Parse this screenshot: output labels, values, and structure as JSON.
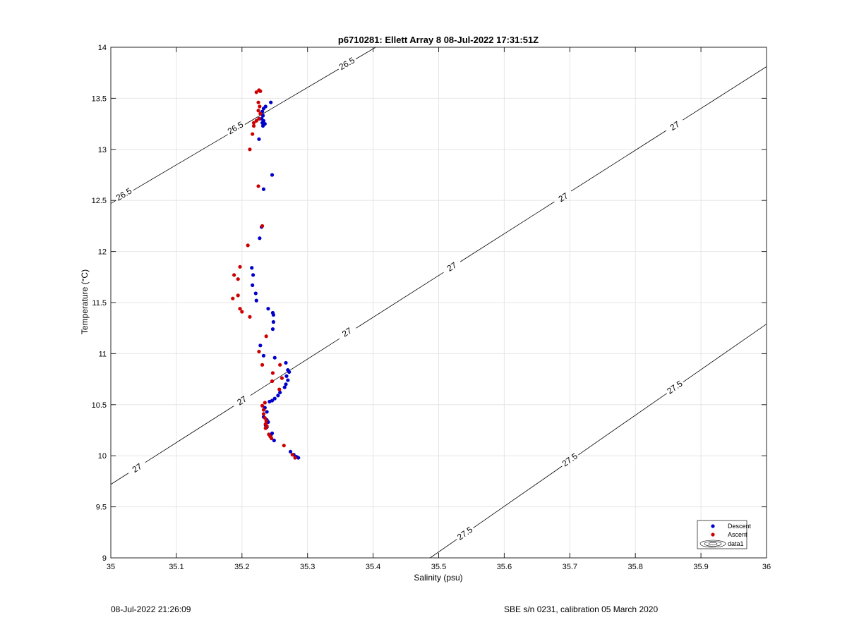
{
  "chart_data": {
    "type": "scatter",
    "title": "p6710281: Ellett Array 8 08-Jul-2022 17:31:51Z",
    "xlabel": "Salinity (psu)",
    "ylabel": "Temperature (°C)",
    "xlim": [
      35,
      36
    ],
    "ylim": [
      9,
      14
    ],
    "xticks": [
      35,
      35.1,
      35.2,
      35.3,
      35.4,
      35.5,
      35.6,
      35.7,
      35.8,
      35.9,
      36
    ],
    "xtick_labels": [
      "35",
      "35.1",
      "35.2",
      "35.3",
      "35.4",
      "35.5",
      "35.6",
      "35.7",
      "35.8",
      "35.9",
      "36"
    ],
    "yticks": [
      9,
      9.5,
      10,
      10.5,
      11,
      11.5,
      12,
      12.5,
      13,
      13.5,
      14
    ],
    "ytick_labels": [
      "9",
      "9.5",
      "10",
      "10.5",
      "11",
      "11.5",
      "12",
      "12.5",
      "13",
      "13.5",
      "14"
    ],
    "grid": true,
    "legend_position": "bottom-right",
    "series": [
      {
        "name": "Descent",
        "color": "#0000cc",
        "points": [
          [
            35.244,
            13.46
          ],
          [
            35.236,
            13.42
          ],
          [
            35.233,
            13.4
          ],
          [
            35.231,
            13.37
          ],
          [
            35.232,
            13.33
          ],
          [
            35.23,
            13.3
          ],
          [
            35.233,
            13.28
          ],
          [
            35.231,
            13.26
          ],
          [
            35.235,
            13.25
          ],
          [
            35.232,
            13.23
          ],
          [
            35.226,
            13.1
          ],
          [
            35.246,
            12.75
          ],
          [
            35.233,
            12.61
          ],
          [
            35.23,
            12.24
          ],
          [
            35.227,
            12.13
          ],
          [
            35.215,
            11.84
          ],
          [
            35.217,
            11.77
          ],
          [
            35.216,
            11.67
          ],
          [
            35.221,
            11.59
          ],
          [
            35.222,
            11.52
          ],
          [
            35.24,
            11.44
          ],
          [
            35.247,
            11.4
          ],
          [
            35.248,
            11.38
          ],
          [
            35.248,
            11.31
          ],
          [
            35.247,
            11.24
          ],
          [
            35.228,
            11.08
          ],
          [
            35.233,
            10.98
          ],
          [
            35.25,
            10.96
          ],
          [
            35.267,
            10.91
          ],
          [
            35.27,
            10.84
          ],
          [
            35.272,
            10.82
          ],
          [
            35.268,
            10.78
          ],
          [
            35.27,
            10.74
          ],
          [
            35.267,
            10.7
          ],
          [
            35.265,
            10.67
          ],
          [
            35.258,
            10.62
          ],
          [
            35.255,
            10.59
          ],
          [
            35.25,
            10.56
          ],
          [
            35.246,
            10.54
          ],
          [
            35.242,
            10.53
          ],
          [
            35.235,
            10.47
          ],
          [
            35.238,
            10.43
          ],
          [
            35.233,
            10.38
          ],
          [
            35.238,
            10.35
          ],
          [
            35.24,
            10.33
          ],
          [
            35.236,
            10.3
          ],
          [
            35.238,
            10.28
          ],
          [
            35.246,
            10.22
          ],
          [
            35.244,
            10.2
          ],
          [
            35.249,
            10.15
          ],
          [
            35.274,
            10.04
          ],
          [
            35.279,
            10.01
          ],
          [
            35.283,
            9.99
          ],
          [
            35.286,
            9.98
          ]
        ]
      },
      {
        "name": "Ascent",
        "color": "#cc0000",
        "points": [
          [
            35.226,
            13.58
          ],
          [
            35.222,
            13.56
          ],
          [
            35.228,
            13.57
          ],
          [
            35.225,
            13.46
          ],
          [
            35.227,
            13.42
          ],
          [
            35.225,
            13.38
          ],
          [
            35.228,
            13.35
          ],
          [
            35.226,
            13.3
          ],
          [
            35.222,
            13.28
          ],
          [
            35.218,
            13.26
          ],
          [
            35.218,
            13.23
          ],
          [
            35.216,
            13.15
          ],
          [
            35.212,
            13.0
          ],
          [
            35.225,
            12.64
          ],
          [
            35.231,
            12.25
          ],
          [
            35.209,
            12.06
          ],
          [
            35.197,
            11.85
          ],
          [
            35.188,
            11.77
          ],
          [
            35.194,
            11.73
          ],
          [
            35.194,
            11.57
          ],
          [
            35.186,
            11.54
          ],
          [
            35.197,
            11.44
          ],
          [
            35.2,
            11.41
          ],
          [
            35.212,
            11.36
          ],
          [
            35.237,
            11.17
          ],
          [
            35.226,
            11.02
          ],
          [
            35.231,
            10.89
          ],
          [
            35.258,
            10.89
          ],
          [
            35.247,
            10.81
          ],
          [
            35.261,
            10.76
          ],
          [
            35.246,
            10.73
          ],
          [
            35.257,
            10.65
          ],
          [
            35.235,
            10.52
          ],
          [
            35.231,
            10.49
          ],
          [
            35.233,
            10.45
          ],
          [
            35.233,
            10.41
          ],
          [
            35.235,
            10.37
          ],
          [
            35.237,
            10.34
          ],
          [
            35.236,
            10.31
          ],
          [
            35.238,
            10.29
          ],
          [
            35.236,
            10.27
          ],
          [
            35.241,
            10.21
          ],
          [
            35.243,
            10.19
          ],
          [
            35.245,
            10.17
          ],
          [
            35.264,
            10.1
          ],
          [
            35.277,
            10.01
          ],
          [
            35.281,
            9.98
          ]
        ]
      }
    ],
    "contours": [
      {
        "level": "26.5",
        "points": [
          [
            35,
            12.47
          ],
          [
            35.404,
            14
          ]
        ],
        "labels": [
          [
            35.02,
            12.56
          ],
          [
            35.19,
            13.21
          ],
          [
            35.36,
            13.84
          ]
        ]
      },
      {
        "level": "27",
        "points": [
          [
            35,
            9.72
          ],
          [
            36,
            13.81
          ]
        ],
        "labels": [
          [
            35.04,
            9.88
          ],
          [
            35.2,
            10.54
          ],
          [
            35.36,
            11.21
          ],
          [
            35.52,
            11.85
          ],
          [
            35.69,
            12.53
          ],
          [
            35.86,
            13.23
          ]
        ]
      },
      {
        "level": "27.5",
        "points": [
          [
            35.487,
            9
          ],
          [
            36,
            11.29
          ]
        ],
        "labels": [
          [
            35.54,
            9.24
          ],
          [
            35.7,
            9.96
          ],
          [
            35.86,
            10.67
          ]
        ]
      }
    ],
    "contour_legend_label": "data1"
  },
  "footer": {
    "left": "08-Jul-2022 21:26:09",
    "right": "SBE s/n 0231, calibration 05 March 2020"
  }
}
